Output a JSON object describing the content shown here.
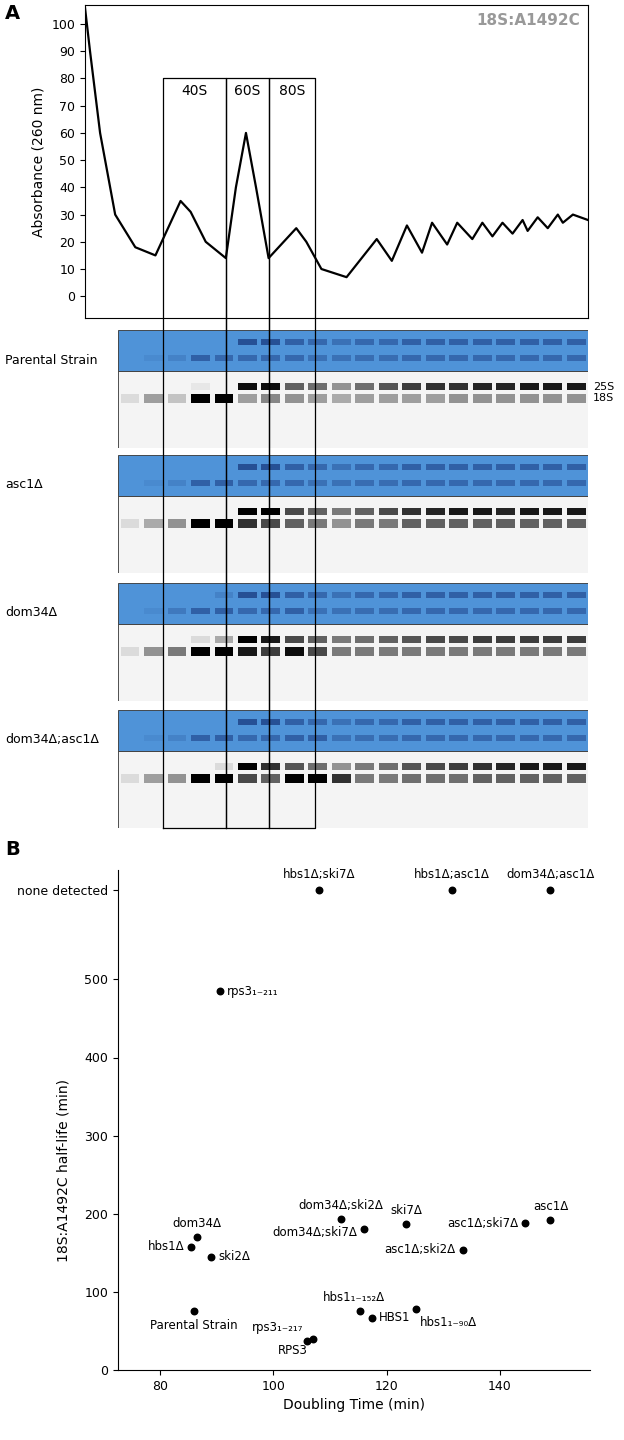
{
  "chart_data": [
    {
      "type": "line",
      "panel_label": "A",
      "annotation": "18S:A1492C",
      "ylabel": "Absorbance (260 nm)",
      "x": [
        0,
        1,
        3,
        6,
        10,
        14,
        17,
        19,
        21,
        24,
        28,
        30,
        32,
        34,
        36.5,
        39,
        42,
        44,
        47,
        52,
        55,
        58,
        61,
        64,
        67,
        69,
        72,
        74,
        77,
        79,
        81,
        83,
        85,
        87,
        88,
        90,
        92,
        94,
        95,
        97,
        100
      ],
      "values": [
        106,
        90,
        60,
        30,
        18,
        15,
        27,
        35,
        31,
        20,
        14,
        40,
        60,
        40,
        14,
        19,
        25,
        20,
        10,
        7,
        14,
        21,
        13,
        26,
        16,
        27,
        19,
        27,
        21,
        27,
        22,
        27,
        23,
        28,
        24,
        29,
        25,
        30,
        27,
        30,
        28
      ],
      "xlim": [
        0,
        100
      ],
      "ylim": [
        -8,
        107
      ],
      "yticks": [
        0,
        10,
        20,
        30,
        40,
        50,
        60,
        70,
        80,
        90,
        100
      ],
      "tick_labels": "y",
      "color": "#000000",
      "fractions": [
        {
          "label": "40S",
          "start": 15.5,
          "end": 28,
          "top": 80
        },
        {
          "label": "60S",
          "start": 28,
          "end": 36.5,
          "top": 80
        },
        {
          "label": "80S",
          "start": 36.5,
          "end": 45.7,
          "top": 80
        }
      ]
    },
    {
      "type": "scatter",
      "panel_label": "B",
      "xlabel": "Doubling Time (min)",
      "ylabel": "18S:A1492C half-life (min)",
      "labels": [
        "Parental Strain",
        "dom34Δ",
        "hbs1Δ",
        "ski2Δ",
        "rps3₁₋₂₁₁",
        "hbs1Δ;ski7Δ",
        "hbs1Δ;asc1Δ",
        "dom34Δ;asc1Δ",
        "dom34Δ;ski2Δ",
        "dom34Δ;ski7Δ",
        "ski7Δ",
        "asc1Δ;ski2Δ",
        "asc1Δ;ski7Δ",
        "asc1Δ",
        "hbs1₁₋₁₅₂Δ",
        "HBS1",
        "hbs1₁₋₉₀Δ",
        "rps3₁₋₂₁₇",
        "RPS3"
      ],
      "x": [
        86,
        86.5,
        85.5,
        89,
        90.5,
        108,
        131.5,
        149,
        112,
        116,
        123.5,
        133.5,
        144.5,
        149,
        115.3,
        117.4,
        125.2,
        106,
        107
      ],
      "values": [
        76,
        170,
        158,
        145,
        485,
        615,
        615,
        615,
        193,
        181,
        187,
        154,
        188,
        192,
        76,
        67,
        78,
        37,
        40
      ],
      "xlim": [
        72.5,
        156
      ],
      "ylim": [
        0,
        640
      ],
      "xticks": [
        80,
        100,
        120,
        140
      ],
      "yticks": [
        0,
        100,
        200,
        300,
        400,
        500,
        {
          "value": 615,
          "label": "none detected"
        }
      ],
      "color": "#000000",
      "marker": "o"
    }
  ],
  "gels": {
    "band_labels": [
      "25S",
      "18S"
    ],
    "strains": [
      {
        "label": "Parental Strain",
        "stain_25S": [
          0,
          0,
          0,
          0,
          0,
          0.8,
          0.8,
          0.6,
          0.5,
          0.4,
          0.5,
          0.5,
          0.6,
          0.6,
          0.6,
          0.6,
          0.6,
          0.6,
          0.6,
          0.6
        ],
        "stain_18S": [
          0,
          0.1,
          0.2,
          0.6,
          0.5,
          0.5,
          0.5,
          0.5,
          0.4,
          0.4,
          0.45,
          0.45,
          0.5,
          0.5,
          0.5,
          0.5,
          0.5,
          0.5,
          0.5,
          0.5
        ],
        "northern_25S": [
          0,
          0,
          0,
          0.05,
          0,
          0.95,
          0.95,
          0.6,
          0.55,
          0.4,
          0.55,
          0.65,
          0.75,
          0.8,
          0.8,
          0.85,
          0.85,
          0.9,
          0.9,
          0.9
        ],
        "northern_18S": [
          0.1,
          0.35,
          0.2,
          1.0,
          1.0,
          0.35,
          0.45,
          0.4,
          0.35,
          0.3,
          0.35,
          0.35,
          0.35,
          0.35,
          0.4,
          0.4,
          0.4,
          0.4,
          0.4,
          0.4
        ]
      },
      {
        "label": "asc1Δ",
        "stain_25S": [
          0,
          0,
          0,
          0,
          0,
          0.8,
          0.8,
          0.6,
          0.5,
          0.4,
          0.5,
          0.5,
          0.6,
          0.6,
          0.6,
          0.6,
          0.6,
          0.6,
          0.6,
          0.6
        ],
        "stain_18S": [
          0,
          0.1,
          0.2,
          0.6,
          0.6,
          0.5,
          0.5,
          0.5,
          0.4,
          0.4,
          0.45,
          0.45,
          0.5,
          0.5,
          0.5,
          0.5,
          0.5,
          0.5,
          0.5,
          0.5
        ],
        "northern_25S": [
          0,
          0,
          0,
          0,
          0,
          1.0,
          1.0,
          0.7,
          0.6,
          0.5,
          0.6,
          0.7,
          0.8,
          0.85,
          0.9,
          0.9,
          0.85,
          0.9,
          0.9,
          0.9
        ],
        "northern_18S": [
          0.1,
          0.3,
          0.4,
          1.0,
          1.0,
          0.8,
          0.7,
          0.6,
          0.5,
          0.4,
          0.5,
          0.5,
          0.6,
          0.6,
          0.6,
          0.6,
          0.6,
          0.6,
          0.6,
          0.6
        ]
      },
      {
        "label": "dom34Δ",
        "stain_25S": [
          0,
          0,
          0,
          0,
          0.2,
          0.8,
          0.8,
          0.6,
          0.5,
          0.4,
          0.5,
          0.5,
          0.6,
          0.6,
          0.6,
          0.6,
          0.6,
          0.6,
          0.6,
          0.6
        ],
        "stain_18S": [
          0,
          0.1,
          0.3,
          0.6,
          0.6,
          0.5,
          0.5,
          0.6,
          0.4,
          0.4,
          0.45,
          0.45,
          0.5,
          0.5,
          0.5,
          0.5,
          0.5,
          0.5,
          0.5,
          0.5
        ],
        "northern_25S": [
          0,
          0,
          0,
          0.1,
          0.3,
          1.0,
          0.9,
          0.7,
          0.6,
          0.5,
          0.55,
          0.6,
          0.65,
          0.7,
          0.7,
          0.75,
          0.75,
          0.75,
          0.75,
          0.75
        ],
        "northern_18S": [
          0.1,
          0.4,
          0.5,
          1.0,
          1.0,
          0.9,
          0.75,
          0.95,
          0.7,
          0.5,
          0.5,
          0.5,
          0.5,
          0.5,
          0.5,
          0.5,
          0.5,
          0.5,
          0.5,
          0.5
        ]
      },
      {
        "label": "dom34Δ;asc1Δ",
        "stain_25S": [
          0,
          0,
          0,
          0,
          0,
          0.8,
          0.8,
          0.6,
          0.5,
          0.4,
          0.5,
          0.5,
          0.6,
          0.6,
          0.6,
          0.6,
          0.6,
          0.6,
          0.6,
          0.6
        ],
        "stain_18S": [
          0,
          0.1,
          0.2,
          0.6,
          0.6,
          0.5,
          0.5,
          0.6,
          0.6,
          0.4,
          0.45,
          0.45,
          0.5,
          0.5,
          0.5,
          0.5,
          0.5,
          0.5,
          0.5,
          0.5
        ],
        "northern_25S": [
          0,
          0,
          0,
          0,
          0.1,
          1.0,
          0.8,
          0.65,
          0.55,
          0.4,
          0.5,
          0.55,
          0.65,
          0.7,
          0.75,
          0.8,
          0.85,
          0.9,
          0.9,
          0.9
        ],
        "northern_18S": [
          0.1,
          0.35,
          0.4,
          1.0,
          1.0,
          0.7,
          0.6,
          1.0,
          1.0,
          0.8,
          0.5,
          0.5,
          0.55,
          0.55,
          0.55,
          0.6,
          0.6,
          0.6,
          0.6,
          0.6
        ]
      }
    ]
  }
}
